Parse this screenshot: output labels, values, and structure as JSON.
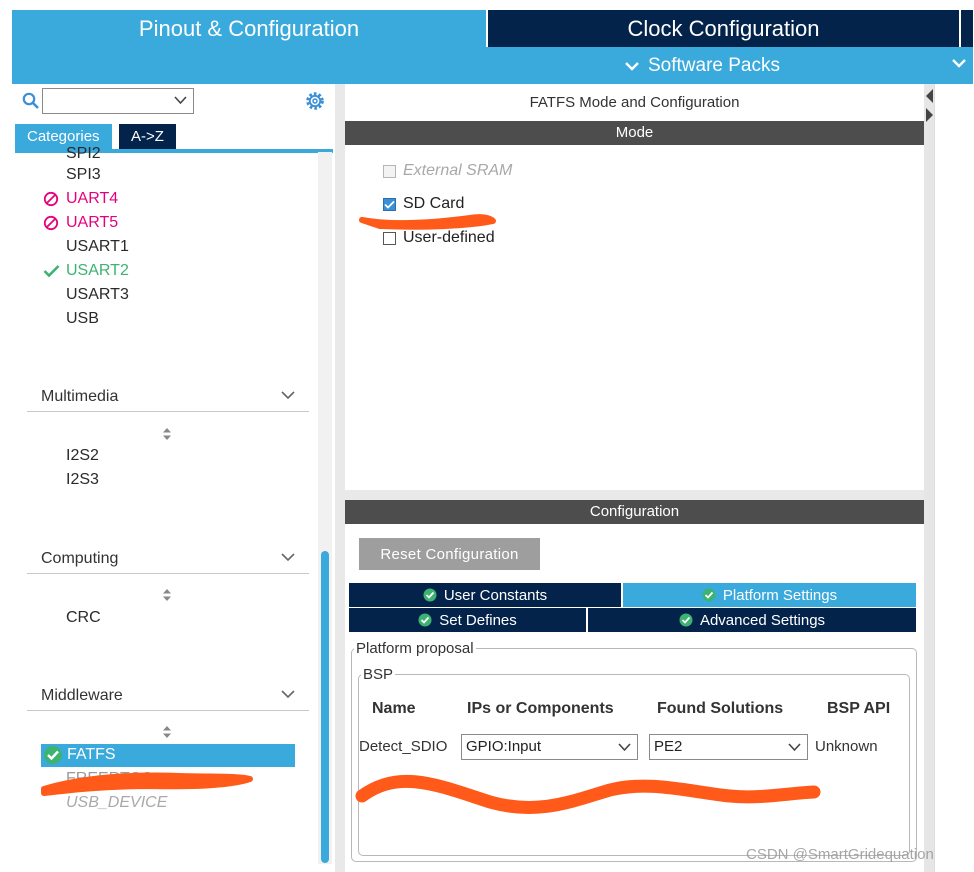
{
  "header": {
    "tabs": [
      {
        "label": "Pinout & Configuration",
        "active": true
      },
      {
        "label": "Clock Configuration",
        "active": false
      }
    ],
    "software_packs_label": "Software Packs"
  },
  "left_panel": {
    "search": {
      "value": "",
      "placeholder": ""
    },
    "category_tabs": [
      "Categories",
      "A->Z"
    ],
    "connectivity_items": [
      {
        "label": "SPI2",
        "status": "none"
      },
      {
        "label": "SPI3",
        "status": "none"
      },
      {
        "label": "UART4",
        "status": "disabled"
      },
      {
        "label": "UART5",
        "status": "disabled"
      },
      {
        "label": "USART1",
        "status": "none"
      },
      {
        "label": "USART2",
        "status": "enabled"
      },
      {
        "label": "USART3",
        "status": "none"
      },
      {
        "label": "USB",
        "status": "none"
      }
    ],
    "sections": [
      {
        "title": "Multimedia",
        "items": [
          "I2S2",
          "I2S3"
        ]
      },
      {
        "title": "Computing",
        "items": [
          "CRC"
        ]
      },
      {
        "title": "Middleware",
        "items": [
          "FATFS",
          "FREERTOS",
          "USB_DEVICE"
        ]
      }
    ]
  },
  "main": {
    "title": "FATFS Mode and Configuration",
    "mode_header": "Mode",
    "mode_options": [
      {
        "label": "External SRAM",
        "checked": false,
        "disabled": true
      },
      {
        "label": "SD Card",
        "checked": true,
        "disabled": false
      },
      {
        "label": "User-defined",
        "checked": false,
        "disabled": false
      }
    ],
    "config_header": "Configuration",
    "reset_button": "Reset Configuration",
    "config_tabs": [
      {
        "label": "User Constants",
        "active": false
      },
      {
        "label": "Platform Settings",
        "active": true
      },
      {
        "label": "Set Defines",
        "active": false
      },
      {
        "label": "Advanced Settings",
        "active": false
      }
    ],
    "platform_proposal_label": "Platform proposal",
    "bsp_label": "BSP",
    "table": {
      "columns": [
        "Name",
        "IPs or Components",
        "Found Solutions",
        "BSP API"
      ],
      "rows": [
        {
          "name": "Detect_SDIO",
          "ip": "GPIO:Input",
          "solution": "PE2",
          "api": "Unknown"
        }
      ]
    }
  },
  "watermark": "CSDN @SmartGridequation",
  "colors": {
    "accent_light": "#3aa9dc",
    "accent_dark": "#03234b",
    "bar_grey": "#4d4d4d",
    "disabled_pink": "#e6007e",
    "enabled_green": "#3cb371",
    "annotation_orange": "#ff5a1a"
  }
}
